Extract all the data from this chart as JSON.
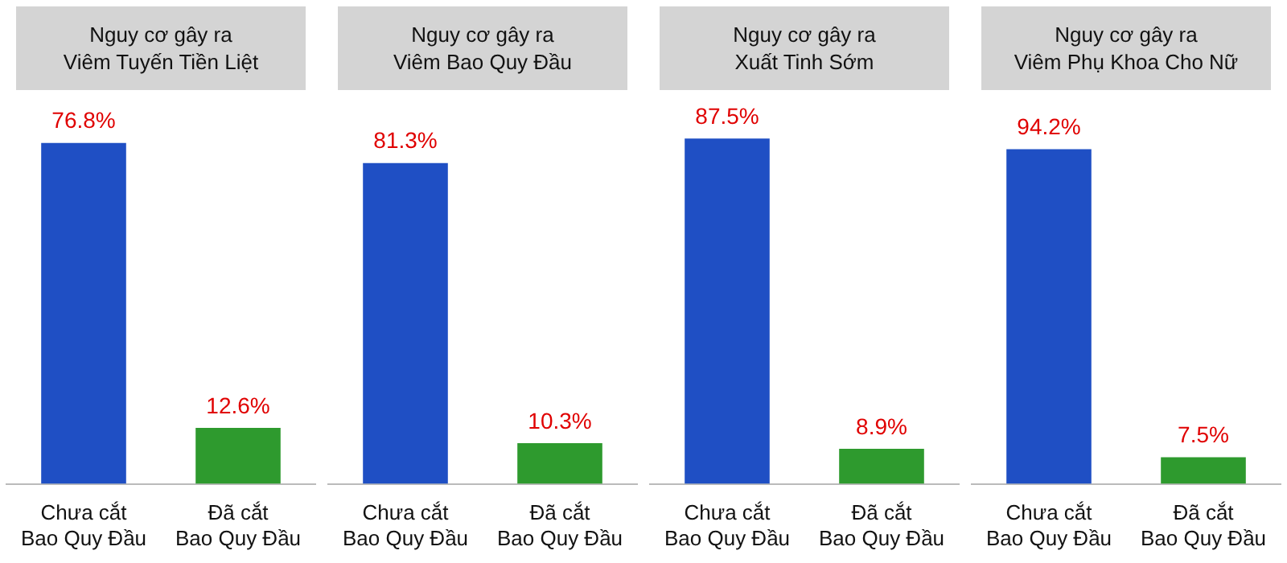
{
  "chart_data": [
    {
      "type": "bar",
      "title": "Nguy cơ gây ra\nViêm Tuyến Tiền Liệt",
      "categories": [
        "Chưa cắt\nBao Quy Đầu",
        "Đã cắt\nBao Quy Đầu"
      ],
      "values": [
        76.8,
        12.6
      ],
      "value_labels": [
        "76.8%",
        "12.6%"
      ],
      "colors": [
        "#1f4fc4",
        "#2e9a2e"
      ],
      "grid": false,
      "legend": false
    },
    {
      "type": "bar",
      "title": "Nguy cơ gây ra\nViêm Bao Quy Đầu",
      "categories": [
        "Chưa cắt\nBao Quy Đầu",
        "Đã cắt\nBao Quy Đầu"
      ],
      "values": [
        81.3,
        10.3
      ],
      "value_labels": [
        "81.3%",
        "10.3%"
      ],
      "colors": [
        "#1f4fc4",
        "#2e9a2e"
      ],
      "grid": false,
      "legend": false
    },
    {
      "type": "bar",
      "title": "Nguy cơ gây ra\nXuất Tinh Sớm",
      "categories": [
        "Chưa cắt\nBao Quy Đầu",
        "Đã cắt\nBao Quy Đầu"
      ],
      "values": [
        87.5,
        8.9
      ],
      "value_labels": [
        "87.5%",
        "8.9%"
      ],
      "colors": [
        "#1f4fc4",
        "#2e9a2e"
      ],
      "grid": false,
      "legend": false
    },
    {
      "type": "bar",
      "title": "Nguy cơ gây ra\nViêm Phụ Khoa Cho Nữ",
      "categories": [
        "Chưa cắt\nBao Quy Đầu",
        "Đã cắt\nBao Quy Đầu"
      ],
      "values": [
        94.2,
        7.5
      ],
      "value_labels": [
        "94.2%",
        "7.5%"
      ],
      "colors": [
        "#1f4fc4",
        "#2e9a2e"
      ],
      "grid": false,
      "legend": false
    }
  ]
}
